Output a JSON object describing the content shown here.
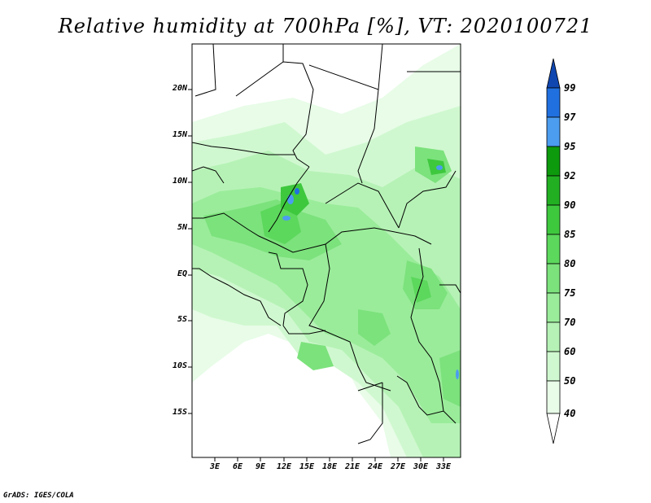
{
  "title": "Relative humidity at 700hPa [%], VT: 2020100721",
  "credit": "GrADS: IGES/COLA",
  "axes": {
    "lat_labels": [
      "20N",
      "15N",
      "10N",
      "5N",
      "EQ",
      "5S",
      "10S",
      "15S"
    ],
    "lon_labels": [
      "3E",
      "6E",
      "9E",
      "12E",
      "15E",
      "18E",
      "21E",
      "24E",
      "27E",
      "30E",
      "33E"
    ]
  },
  "colorbar": {
    "levels": [
      "40",
      "50",
      "60",
      "70",
      "75",
      "80",
      "85",
      "90",
      "92",
      "95",
      "97",
      "99"
    ],
    "colors": [
      "#ffffff",
      "#e8fce8",
      "#d0f8d0",
      "#b6f2b6",
      "#9aec9a",
      "#7ce27c",
      "#5cd85c",
      "#3ec83e",
      "#22b022",
      "#0d9a0d",
      "#4c9cf0",
      "#2070e0",
      "#1046b0"
    ]
  }
}
